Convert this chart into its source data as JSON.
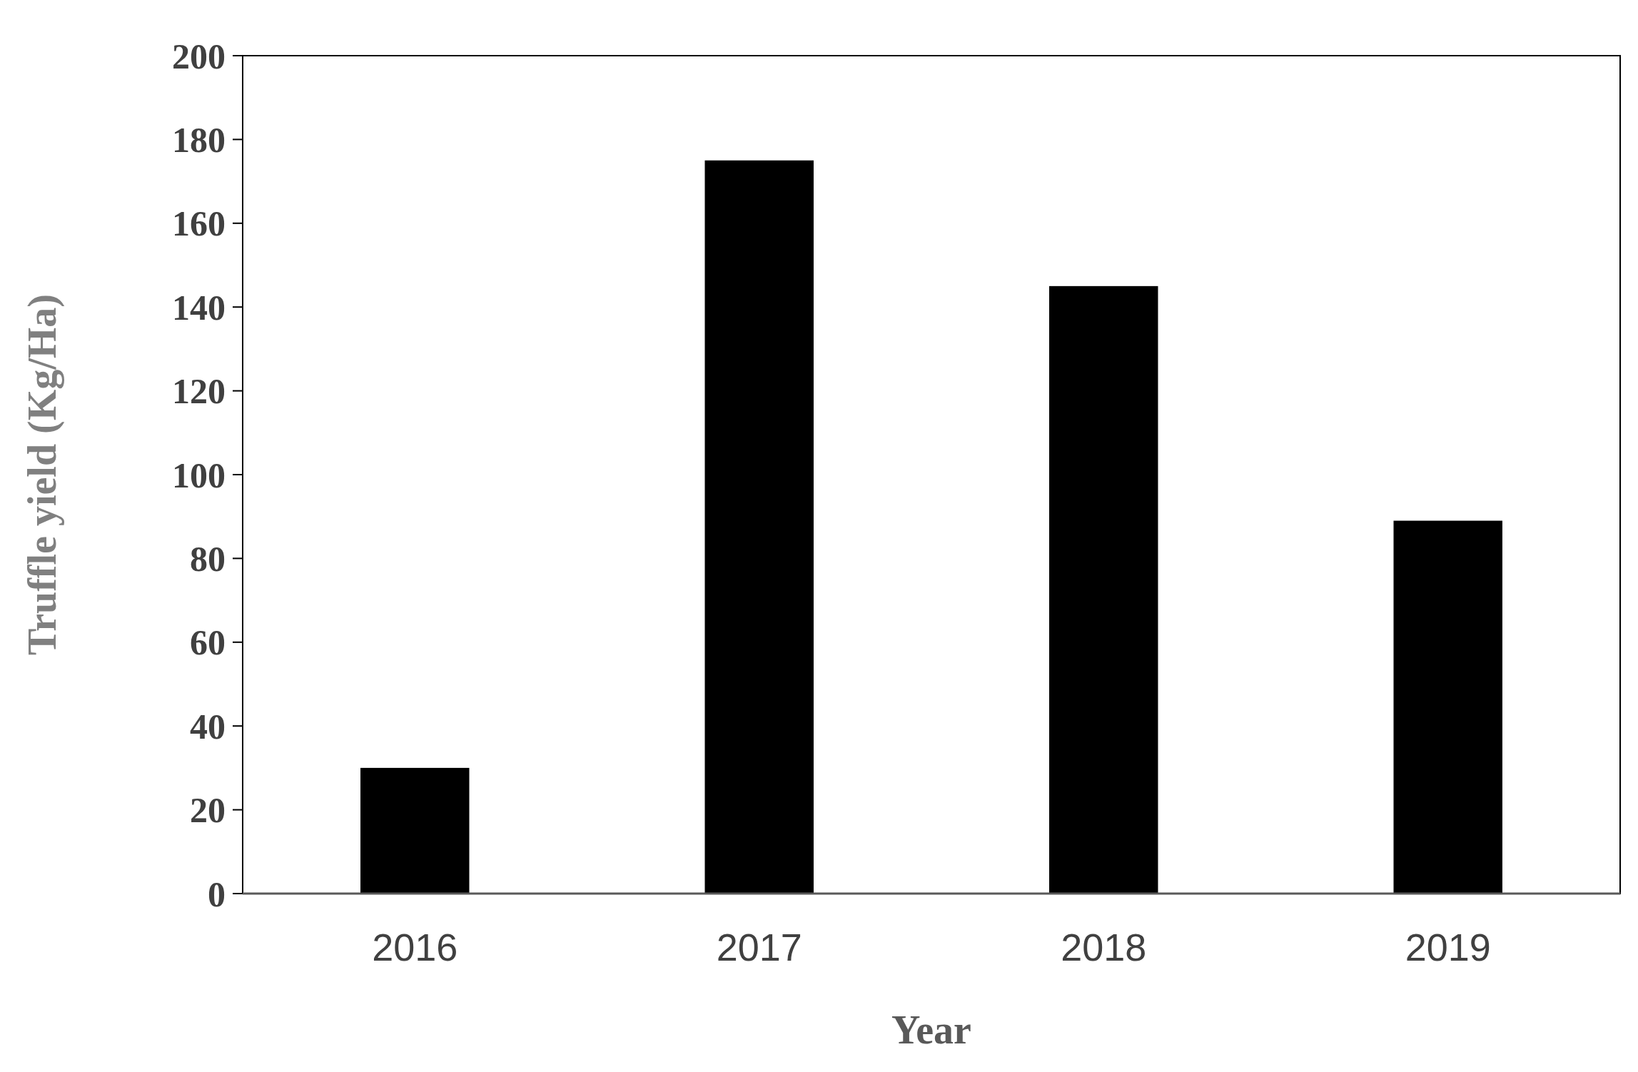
{
  "chart_data": {
    "type": "bar",
    "xlabel": "Year",
    "ylabel": "Truffle yield (Kg/Ha)",
    "categories": [
      "2016",
      "2017",
      "2018",
      "2019"
    ],
    "values": [
      30,
      175,
      145,
      89
    ],
    "color": "#000000",
    "ylim": [
      0,
      200
    ],
    "yticks": [
      0,
      20,
      40,
      60,
      80,
      100,
      120,
      140,
      160,
      180,
      200
    ],
    "grid": false
  }
}
